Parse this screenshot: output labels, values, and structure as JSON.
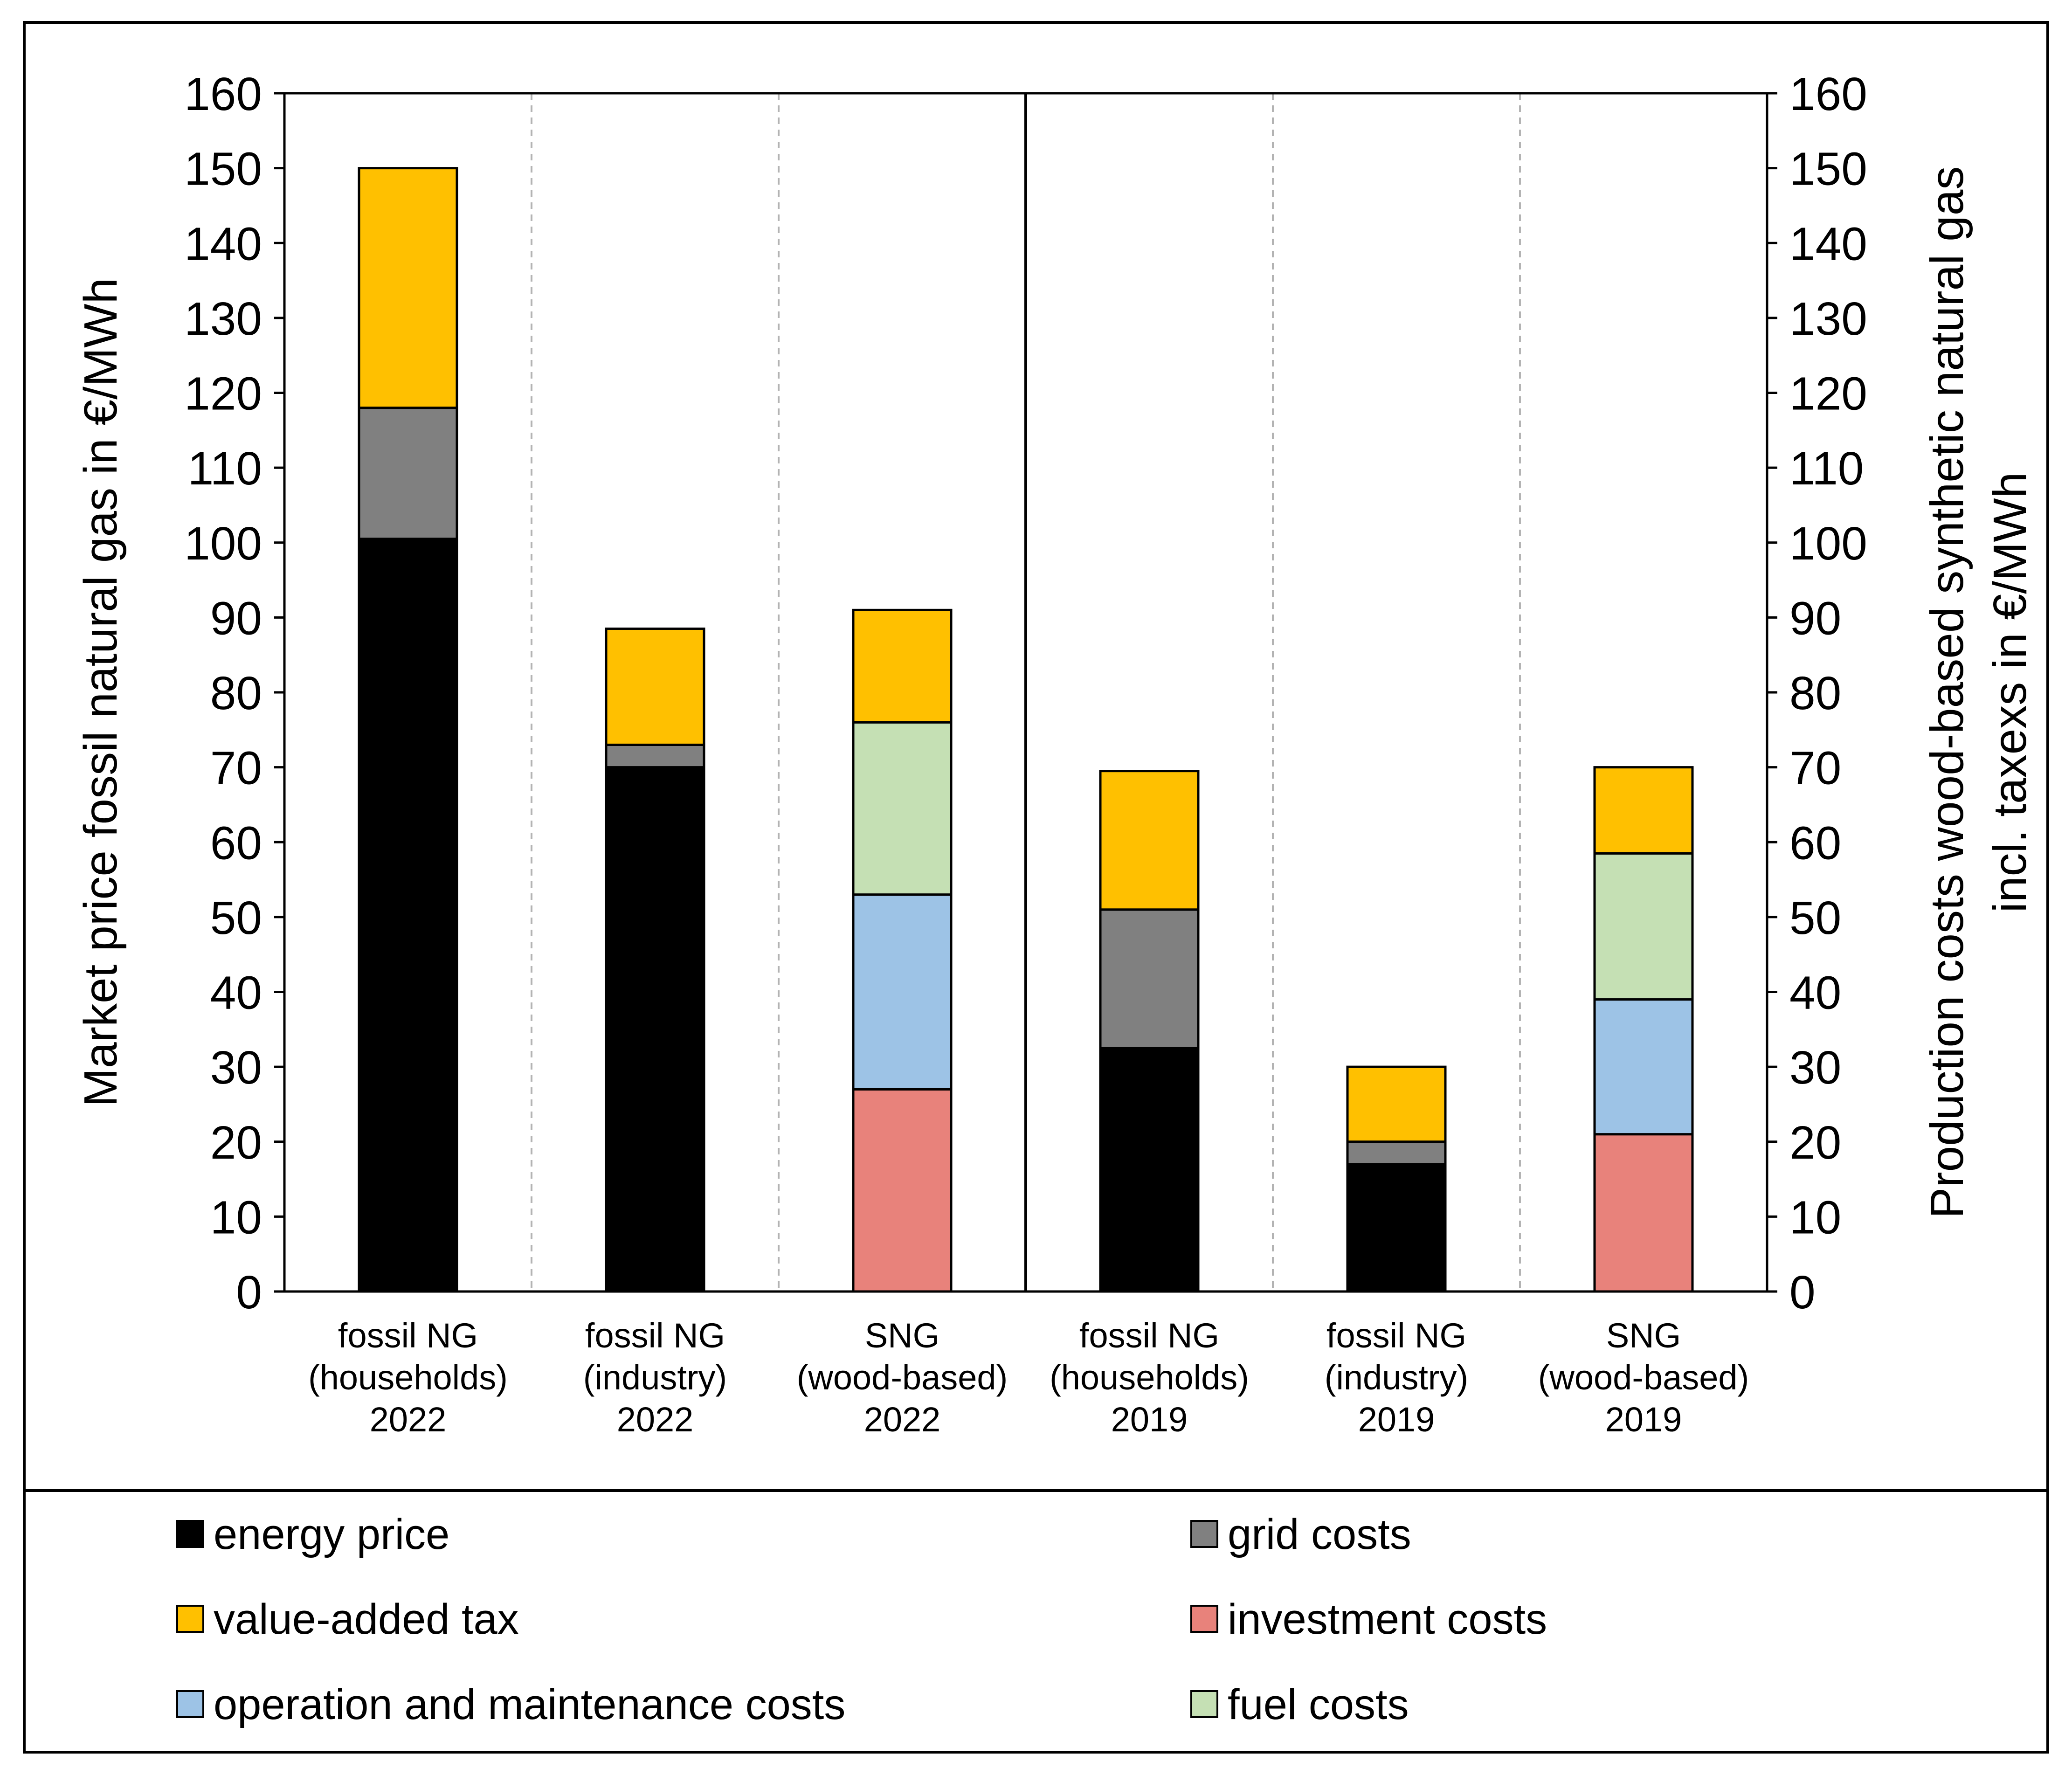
{
  "chart_data": {
    "type": "bar",
    "stacked": true,
    "categories": [
      [
        "fossil NG",
        "(households)",
        "2022"
      ],
      [
        "fossil NG",
        "(industry)",
        "2022"
      ],
      [
        "SNG",
        "(wood-based)",
        "2022"
      ],
      [
        "fossil NG",
        "(households)",
        "2019"
      ],
      [
        "fossil NG",
        "(industry)",
        "2019"
      ],
      [
        "SNG",
        "(wood-based)",
        "2019"
      ]
    ],
    "series": [
      {
        "name": "energy price",
        "color": "#000000",
        "values": [
          100.5,
          70,
          0,
          32.5,
          17,
          0
        ]
      },
      {
        "name": "grid costs",
        "color": "#808080",
        "values": [
          17.5,
          3,
          0,
          18.5,
          3,
          0
        ]
      },
      {
        "name": "investment costs",
        "color": "#E8827B",
        "values": [
          0,
          0,
          27,
          0,
          0,
          21
        ]
      },
      {
        "name": "operation and maintenance costs",
        "color": "#9DC3E6",
        "values": [
          0,
          0,
          26,
          0,
          0,
          18
        ]
      },
      {
        "name": "fuel costs",
        "color": "#C5E0B4",
        "values": [
          0,
          0,
          23,
          0,
          0,
          19.5
        ]
      },
      {
        "name": "value-added tax",
        "color": "#FFC000",
        "values": [
          32,
          15.5,
          15,
          18.5,
          10,
          11.5
        ]
      }
    ],
    "ylim": [
      0,
      160
    ],
    "yticks": [
      "0",
      "10",
      "20",
      "30",
      "40",
      "50",
      "60",
      "70",
      "80",
      "90",
      "100",
      "110",
      "120",
      "130",
      "140",
      "150",
      "160"
    ],
    "ylabel_left": "Market price fossil natural gas in €/MWh",
    "ylabel_right": [
      "Production costs wood-based synthetic natural gas",
      "incl. taxexs in €/MWh"
    ],
    "grid": "dashed vertical",
    "legend_position": "bottom",
    "legend": [
      {
        "label": "energy price",
        "color": "#000000"
      },
      {
        "label": "grid costs",
        "color": "#808080"
      },
      {
        "label": "value-added tax",
        "color": "#FFC000"
      },
      {
        "label": "investment costs",
        "color": "#E8827B"
      },
      {
        "label": "operation and maintenance costs",
        "color": "#9DC3E6"
      },
      {
        "label": "fuel costs",
        "color": "#C5E0B4"
      }
    ]
  }
}
